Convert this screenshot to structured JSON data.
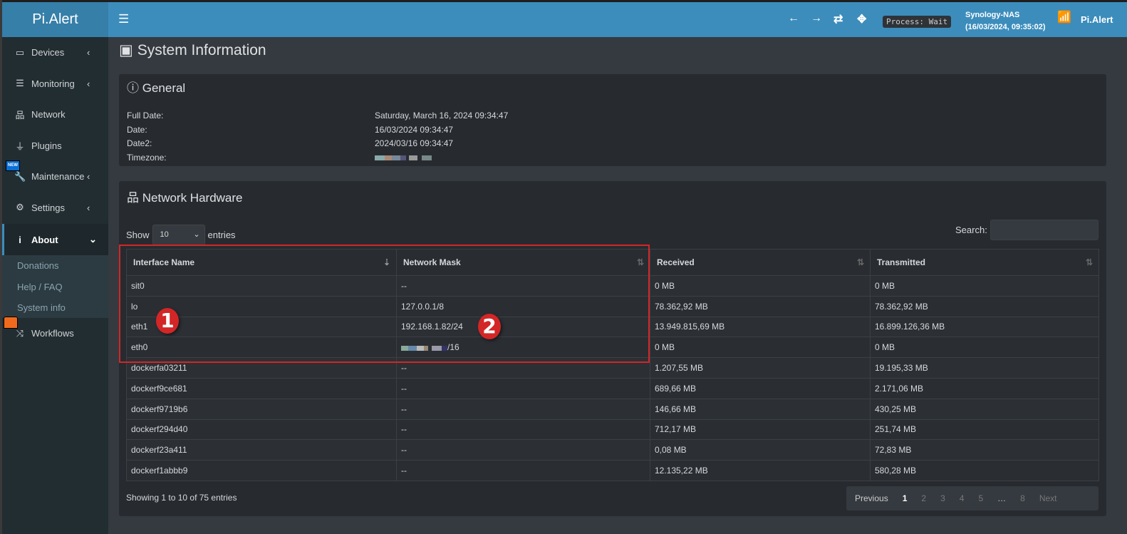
{
  "app": {
    "title": "Pi.Alert",
    "brand": "Pi.Alert",
    "process_status": "Process: Wait",
    "host": "Synology-NAS",
    "host_time": "(16/03/2024, 09:35:02)"
  },
  "sidebar": {
    "items": [
      {
        "label": "Devices",
        "icon": "laptop-icon",
        "chevron": "‹"
      },
      {
        "label": "Monitoring",
        "icon": "chart-icon",
        "chevron": "‹"
      },
      {
        "label": "Network",
        "icon": "sitemap-icon"
      },
      {
        "label": "Plugins",
        "icon": "plug-icon"
      },
      {
        "label": "Maintenance",
        "icon": "wrench-icon",
        "chevron": "‹",
        "badge": "NEW"
      },
      {
        "label": "Settings",
        "icon": "gear-icon",
        "chevron": "‹"
      },
      {
        "label": "About",
        "icon": "info-icon",
        "chevron": "⌄"
      },
      {
        "label": "Workflows",
        "icon": "shuffle-icon"
      }
    ],
    "about_sub": [
      "Donations",
      "Help / FAQ",
      "System info"
    ]
  },
  "page": {
    "title": "System Information"
  },
  "general": {
    "title": "General",
    "rows": [
      {
        "label": "Full Date:",
        "value": "Saturday, March 16, 2024 09:34:47"
      },
      {
        "label": "Date:",
        "value": "16/03/2024 09:34:47"
      },
      {
        "label": "Date2:",
        "value": "2024/03/16 09:34:47"
      },
      {
        "label": "Timezone:",
        "value": ""
      }
    ]
  },
  "network": {
    "title": "Network Hardware",
    "show": "Show",
    "entries": "entries",
    "page_size": "10",
    "search_label": "Search:",
    "search_value": "",
    "columns": [
      "Interface Name",
      "Network Mask",
      "Received",
      "Transmitted"
    ],
    "rows": [
      [
        "sit0",
        "--",
        "0 MB",
        "0 MB"
      ],
      [
        "lo",
        "127.0.0.1/8",
        "78.362,92 MB",
        "78.362,92 MB"
      ],
      [
        "eth1",
        "192.168.1.82/24",
        "13.949.815,69 MB",
        "16.899.126,36 MB"
      ],
      [
        "eth0",
        "/16",
        "0 MB",
        "0 MB"
      ],
      [
        "dockerfa03211",
        "--",
        "1.207,55 MB",
        "19.195,33 MB"
      ],
      [
        "dockerf9ce681",
        "--",
        "689,66 MB",
        "2.171,06 MB"
      ],
      [
        "dockerf9719b6",
        "--",
        "146,66 MB",
        "430,25 MB"
      ],
      [
        "dockerf294d40",
        "--",
        "712,17 MB",
        "251,74 MB"
      ],
      [
        "dockerf23a411",
        "--",
        "0,08 MB",
        "72,83 MB"
      ],
      [
        "dockerf1abbb9",
        "--",
        "12.135,22 MB",
        "580,28 MB"
      ]
    ],
    "info": "Showing 1 to 10 of 75 entries",
    "pager": {
      "prev": "Previous",
      "pages": [
        "1",
        "2",
        "3",
        "4",
        "5",
        "…",
        "8"
      ],
      "next": "Next"
    }
  },
  "annotations": [
    "1",
    "2"
  ],
  "colors": {
    "header": "#3c8dbc",
    "sidebar": "#222d32",
    "highlight": "#d32626"
  }
}
